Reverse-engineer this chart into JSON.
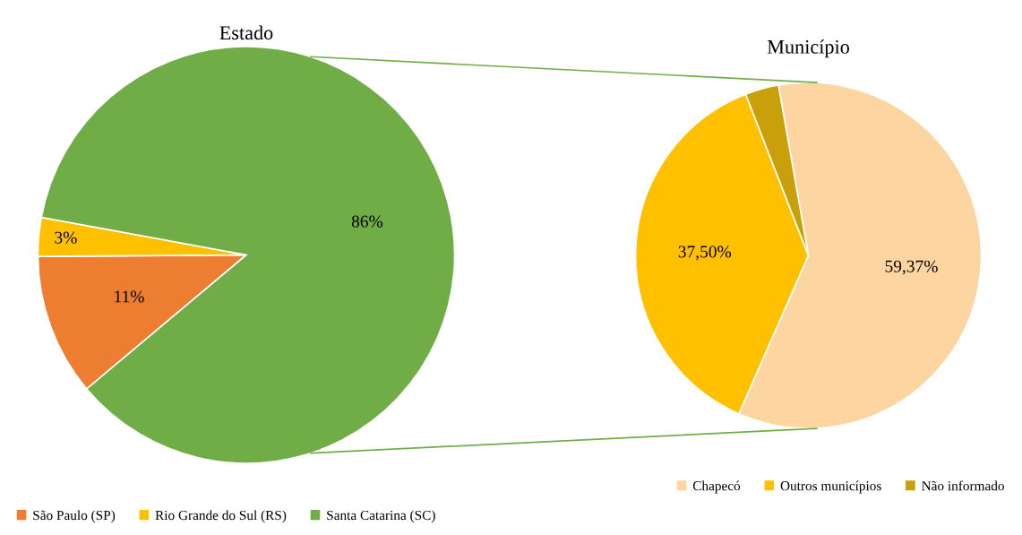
{
  "chart_data": [
    {
      "type": "pie",
      "title": "Estado",
      "categories": [
        "São Paulo (SP)",
        "Rio Grande do Sul (RS)",
        "Santa Catarina (SC)"
      ],
      "values": [
        11,
        3,
        86
      ],
      "colors": [
        "#ed7d31",
        "#ffc000",
        "#70ad47"
      ],
      "value_labels": [
        "11%",
        "3%",
        "86%"
      ],
      "legend": "bottom left"
    },
    {
      "type": "pie",
      "title": "Município",
      "categories": [
        "Chapecó",
        "Outros municípios",
        "Não informado"
      ],
      "values": [
        59.37,
        37.5,
        3.13
      ],
      "colors": [
        "#fcd5a0",
        "#ffc000",
        "#c9a009"
      ],
      "value_labels": [
        "59,37%",
        "37,50%",
        null
      ],
      "legend": "bottom right"
    }
  ]
}
